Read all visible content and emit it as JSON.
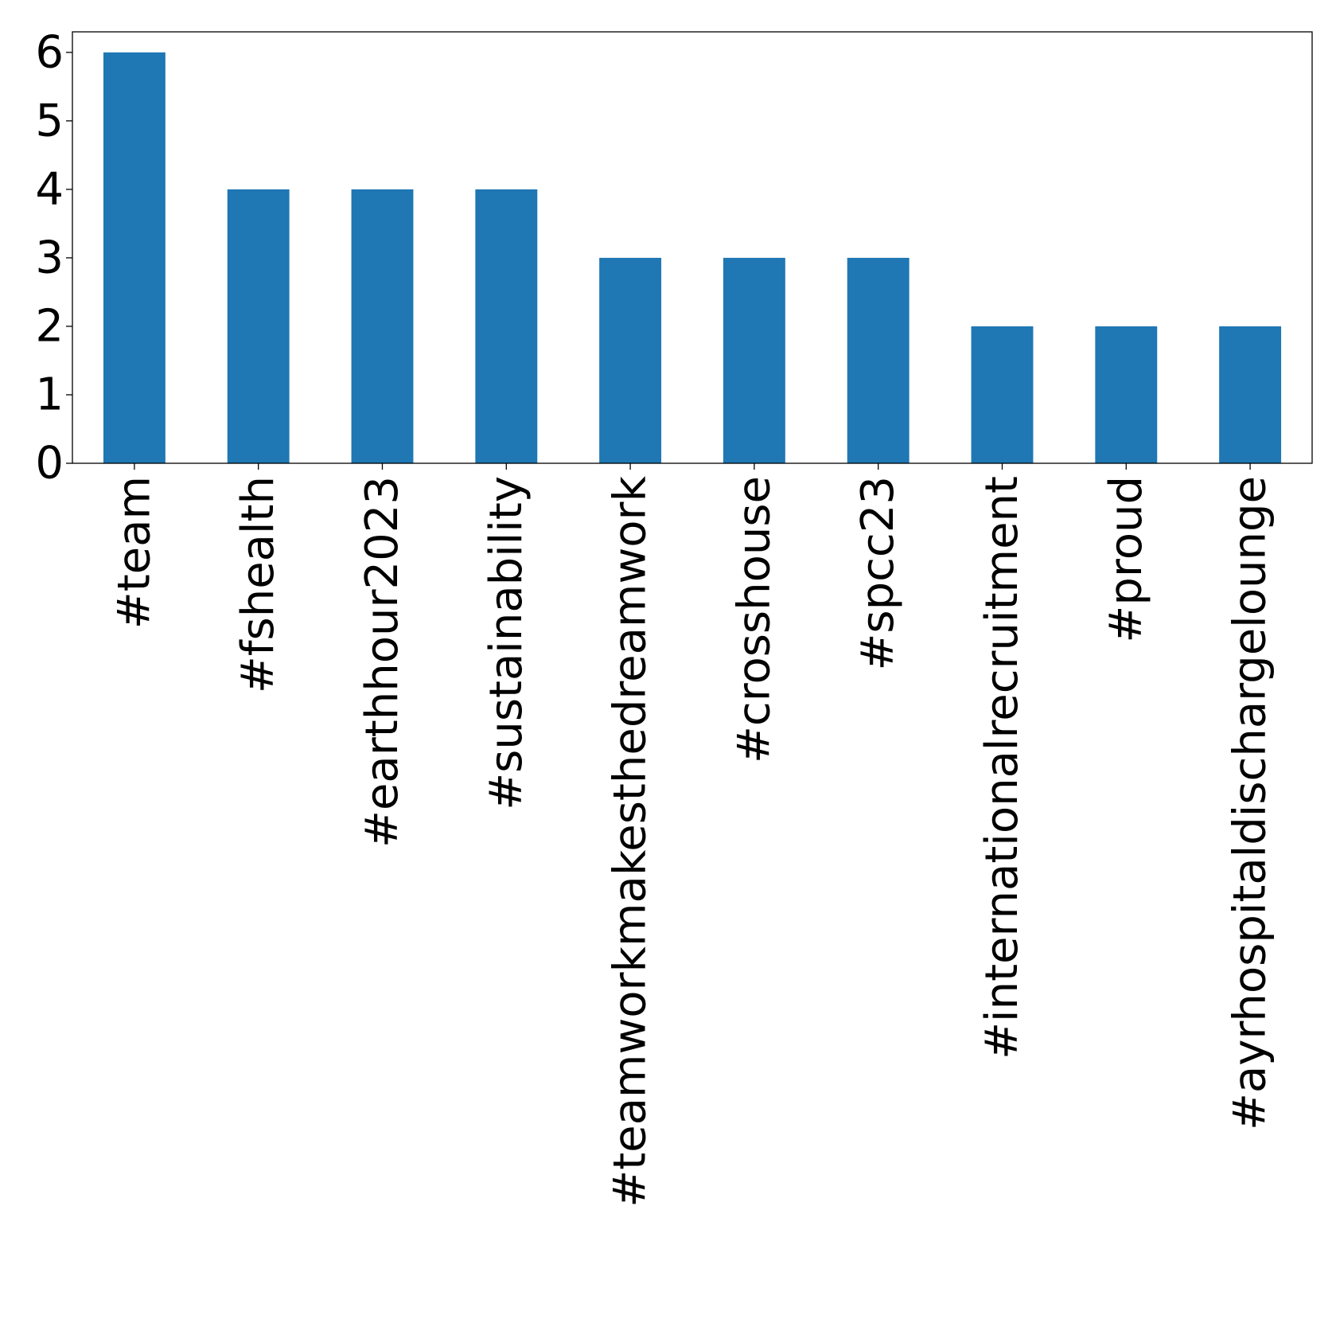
{
  "chart_data": {
    "type": "bar",
    "title": "",
    "xlabel": "",
    "ylabel": "",
    "categories": [
      "#team",
      "#fshealth",
      "#earthhour2023",
      "#sustainability",
      "#teamworkmakesthedreamwork",
      "#crosshouse",
      "#spcc23",
      "#internationalrecruitment",
      "#proud",
      "#ayrhospitaldischargelounge"
    ],
    "values": [
      6,
      4,
      4,
      4,
      3,
      3,
      3,
      2,
      2,
      2
    ],
    "ylim": [
      0,
      6.3
    ],
    "yticks": [
      0,
      1,
      2,
      3,
      4,
      5,
      6
    ],
    "grid": false,
    "legend": "none",
    "bar_color": "#1f77b4"
  }
}
